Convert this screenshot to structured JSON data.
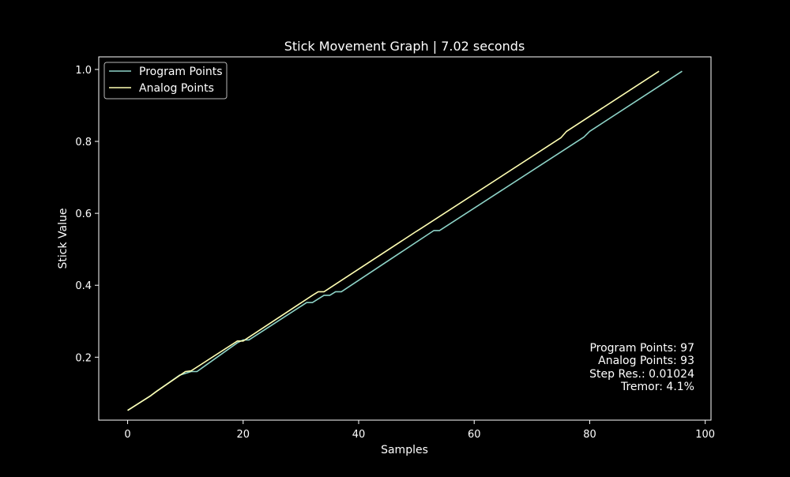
{
  "chart_data": {
    "type": "line",
    "title": "Stick Movement Graph | 7.02 seconds",
    "xlabel": "Samples",
    "ylabel": "Stick Value",
    "xlim": [
      -5,
      101
    ],
    "ylim": [
      0.025,
      1.035
    ],
    "xticks": [
      0,
      20,
      40,
      60,
      80,
      100
    ],
    "yticks": [
      0.2,
      0.4,
      0.6,
      0.8,
      1.0
    ],
    "xtick_labels": [
      "0",
      "20",
      "40",
      "60",
      "80",
      "100"
    ],
    "ytick_labels": [
      "0.2",
      "0.4",
      "0.6",
      "0.8",
      "1.0"
    ],
    "grid": false,
    "legend_position": "top-left",
    "series": [
      {
        "name": "Program Points",
        "color": "#8dd3c7",
        "points": [
          [
            0,
            0.052
          ],
          [
            4,
            0.093
          ],
          [
            5,
            0.105
          ],
          [
            9,
            0.15
          ],
          [
            11,
            0.16
          ],
          [
            12,
            0.16
          ],
          [
            19,
            0.24
          ],
          [
            20,
            0.248
          ],
          [
            21,
            0.248
          ],
          [
            31,
            0.352
          ],
          [
            32,
            0.352
          ],
          [
            34,
            0.372
          ],
          [
            35,
            0.372
          ],
          [
            36,
            0.382
          ],
          [
            37,
            0.382
          ],
          [
            53,
            0.552
          ],
          [
            54,
            0.552
          ],
          [
            79,
            0.812
          ],
          [
            80,
            0.828
          ],
          [
            96,
            0.995
          ]
        ]
      },
      {
        "name": "Analog Points",
        "color": "#ffffb3",
        "points": [
          [
            0,
            0.052
          ],
          [
            4,
            0.093
          ],
          [
            5,
            0.105
          ],
          [
            10,
            0.16
          ],
          [
            11,
            0.162
          ],
          [
            19,
            0.245
          ],
          [
            20,
            0.245
          ],
          [
            32,
            0.372
          ],
          [
            33,
            0.382
          ],
          [
            34,
            0.382
          ],
          [
            50,
            0.55
          ],
          [
            51,
            0.56
          ],
          [
            75,
            0.81
          ],
          [
            76,
            0.828
          ],
          [
            92,
            0.995
          ]
        ]
      }
    ],
    "annotations": [
      "Program Points: 97",
      "Analog Points: 93",
      "Step Res.: 0.01024",
      "Tremor: 4.1%"
    ],
    "colors": {
      "background": "#000000",
      "foreground": "#ffffff"
    }
  }
}
